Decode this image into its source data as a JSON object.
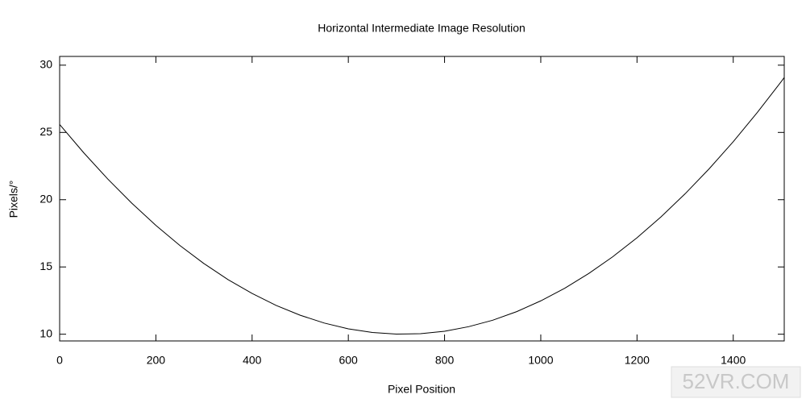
{
  "chart_data": {
    "type": "line",
    "title": "Horizontal Intermediate Image Resolution",
    "x_label": "Pixel Position",
    "y_label": "Pixels/°",
    "x": [
      0,
      50,
      100,
      150,
      200,
      250,
      300,
      350,
      400,
      450,
      500,
      550,
      600,
      650,
      700,
      750,
      800,
      850,
      900,
      950,
      1000,
      1050,
      1100,
      1150,
      1200,
      1250,
      1300,
      1350,
      1400,
      1450,
      1500,
      1506
    ],
    "series": [
      {
        "color": "#000000",
        "values": [
          25.59,
          23.49,
          21.54,
          19.74,
          18.09,
          16.59,
          15.25,
          14.06,
          13.03,
          12.14,
          11.41,
          10.83,
          10.4,
          10.13,
          10.01,
          10.04,
          10.22,
          10.56,
          11.04,
          11.68,
          12.48,
          13.42,
          14.52,
          15.77,
          17.17,
          18.73,
          20.44,
          22.3,
          24.31,
          26.48,
          28.79,
          29.08
        ]
      }
    ],
    "xlim": [
      0,
      1506
    ],
    "ylim": [
      9.5,
      30.65
    ],
    "xticks": [
      0,
      200,
      400,
      600,
      800,
      1000,
      1200,
      1400
    ],
    "yticks": [
      10,
      15,
      20,
      25,
      30
    ],
    "grid": false,
    "watermark": "52VR.COM"
  }
}
